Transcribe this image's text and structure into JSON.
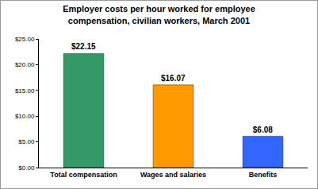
{
  "chart_data": {
    "type": "bar",
    "title": "Employer costs per hour worked for employee\ncompensation, civilian workers, March 2001",
    "categories": [
      "Total compensation",
      "Wages and salaries",
      "Benefits"
    ],
    "values": [
      22.15,
      16.07,
      6.08
    ],
    "value_labels": [
      "$22.15",
      "$16.07",
      "$6.08"
    ],
    "colors": [
      "#339966",
      "#ff9900",
      "#3366ff"
    ],
    "ylim": [
      0,
      25
    ],
    "yticks": [
      {
        "value": 0,
        "label": "$0.00"
      },
      {
        "value": 5,
        "label": "$5.00"
      },
      {
        "value": 10,
        "label": "$10.00"
      },
      {
        "value": 15,
        "label": "$15.00"
      },
      {
        "value": 20,
        "label": "$20.00"
      },
      {
        "value": 25,
        "label": "$25.00"
      }
    ],
    "grid": false,
    "data_labels": true
  }
}
